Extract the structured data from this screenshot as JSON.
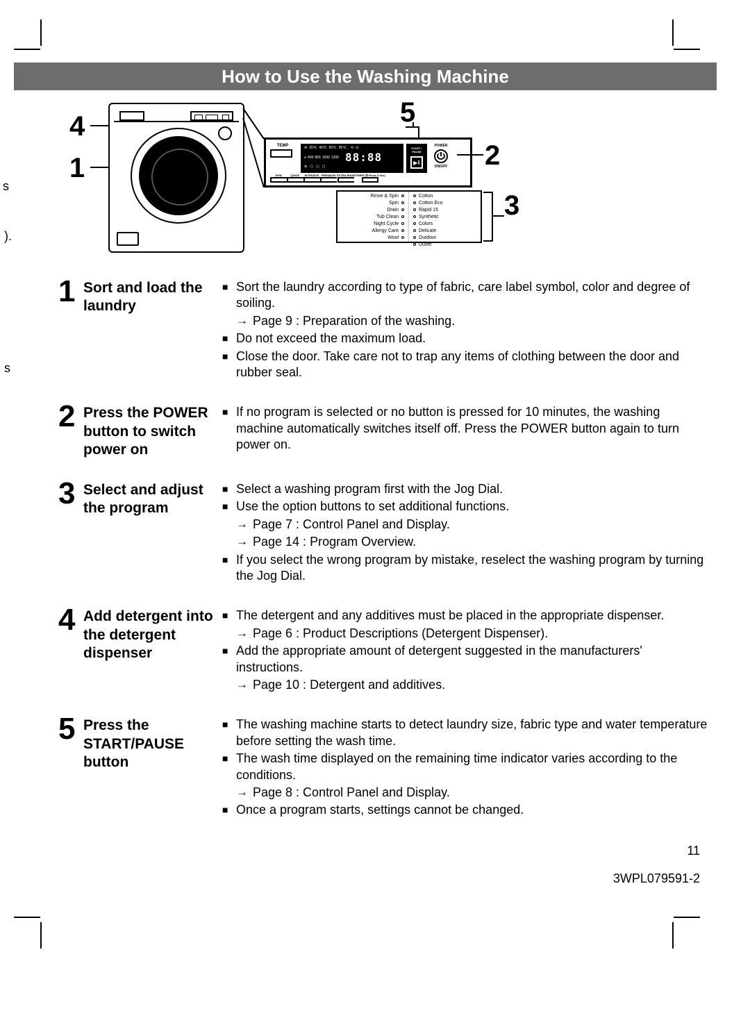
{
  "title": "How to Use the Washing Machine",
  "left_fragments": {
    "f1": "s",
    "f2": ").",
    "f3": "s"
  },
  "diagram": {
    "callouts": {
      "c1": "1",
      "c2": "2",
      "c3": "3",
      "c4": "4",
      "c5": "5"
    },
    "control_panel": {
      "temp_label": "TEMP",
      "display_row1": [
        "❄",
        "30℃",
        "40℃",
        "60℃",
        "95℃",
        "",
        "⟲",
        "⊙"
      ],
      "display_row2": [
        "⌀",
        "400",
        "800",
        "1000",
        "1200"
      ],
      "display_time": "88:88",
      "start_pause_label": "START / PAUSE",
      "power_label": "POWER",
      "onoff_label": "ON/OFF",
      "buttons": [
        "SPIN",
        "QUICK",
        "INTENSIVE",
        "PREWASH",
        "EXTRA RINSE",
        "TIMER (⏱ Press 3 Sec)"
      ]
    },
    "programs_left": [
      "Rinse & Spin",
      "Spin",
      "Drain",
      "Tub Clean",
      "Night Cycle",
      "Allergy Care",
      "Wool"
    ],
    "programs_right": [
      "Cotton",
      "Cotton Eco",
      "Rapid 15",
      "Synthetic",
      "Colors",
      "Delicate",
      "Outdoor",
      "Duvet"
    ]
  },
  "steps": [
    {
      "num": "1",
      "title": "Sort and load the laundry",
      "items": [
        {
          "t": "bullet",
          "text": "Sort the laundry according to type of fabric, care label symbol, color and degree of soiling."
        },
        {
          "t": "arrow",
          "text": "Page 9 : Preparation of the washing."
        },
        {
          "t": "bullet",
          "text": "Do not exceed the maximum load."
        },
        {
          "t": "bullet",
          "text": "Close the door. Take care not to trap any items of clothing between the door and rubber seal."
        }
      ]
    },
    {
      "num": "2",
      "title": "Press the POWER button to switch power on",
      "items": [
        {
          "t": "bullet",
          "text": "If no program is selected or no button is pressed for 10 minutes, the washing machine automatically switches itself off. Press the POWER button again to turn power on."
        }
      ]
    },
    {
      "num": "3",
      "title": "Select and adjust the program",
      "items": [
        {
          "t": "bullet",
          "text": "Select a washing program first with the Jog Dial."
        },
        {
          "t": "bullet",
          "text": "Use the option buttons to set additional functions."
        },
        {
          "t": "arrow",
          "text": "Page 7 : Control Panel and Display."
        },
        {
          "t": "arrow",
          "text": "Page 14 : Program Overview."
        },
        {
          "t": "bullet",
          "text": "If you select the wrong program by mistake, reselect the washing program by turning the Jog Dial."
        }
      ]
    },
    {
      "num": "4",
      "title": "Add detergent into the detergent dispenser",
      "items": [
        {
          "t": "bullet",
          "text": "The detergent and any additives must be placed in the appropriate dispenser."
        },
        {
          "t": "arrow",
          "text": "Page 6 : Product Descriptions (Detergent Dispenser)."
        },
        {
          "t": "bullet",
          "text": "Add the appropriate amount of detergent suggested in the manufacturers' instructions."
        },
        {
          "t": "arrow",
          "text": "Page 10 : Detergent and additives."
        }
      ]
    },
    {
      "num": "5",
      "title": "Press the START/PAUSE button",
      "items": [
        {
          "t": "bullet",
          "text": "The washing machine starts to detect laundry size, fabric type and water temperature before setting the wash time."
        },
        {
          "t": "bullet",
          "text": "The wash time displayed on the remaining time indicator varies according to the conditions."
        },
        {
          "t": "arrow",
          "text": "Page 8 : Control Panel and Display."
        },
        {
          "t": "bullet",
          "text": "Once a program starts, settings cannot be changed."
        }
      ]
    }
  ],
  "page_number": "11",
  "doc_id": "3WPL079591-2",
  "colors": {
    "banner_bg": "#6d6d6d",
    "banner_fg": "#ffffff",
    "text": "#000000",
    "page_bg": "#ffffff"
  }
}
